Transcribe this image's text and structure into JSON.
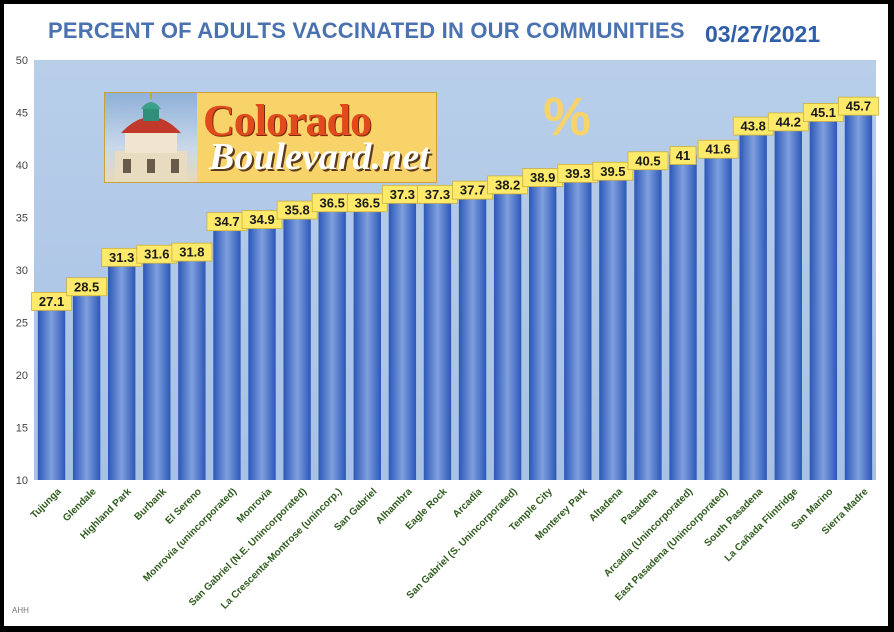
{
  "header": {
    "title": "PERCENT OF ADULTS VACCINATED IN OUR COMMUNITIES",
    "date": "03/27/2021"
  },
  "logo": {
    "word1": "Colorado",
    "word2": "Boulevard.net"
  },
  "percent_symbol": "%",
  "credit": "AHH",
  "colors": {
    "background_top": "#b8cfea",
    "background_bottom": "#a8c2e4",
    "bar_light": "#7fa0de",
    "bar_dark": "#2c57b8",
    "label_fill": "#fde96a",
    "label_text": "#1a1a1a",
    "category_text": "#2e5b1c",
    "title": "#4a72b0"
  },
  "chart_data": {
    "type": "bar",
    "title": "PERCENT OF ADULTS VACCINATED IN OUR COMMUNITIES",
    "xlabel": "",
    "ylabel": "",
    "ylim": [
      10,
      50
    ],
    "yticks": [
      10,
      15,
      20,
      25,
      30,
      35,
      40,
      45,
      50
    ],
    "grid": false,
    "legend": "none",
    "categories": [
      "Tujunga",
      "Glendale",
      "Highland Park",
      "Burbank",
      "El Sereno",
      "Monrovia (unincorporated)",
      "Monrovia",
      "San Gabriel (N.E. Unincorporated)",
      "La Crescenta-Montrose (unincorp.)",
      "San Gabriel",
      "Alhambra",
      "Eagle Rock",
      "Arcadia",
      "San Gabriel (S. Unincorporated)",
      "Temple City",
      "Monterey Park",
      "Altadena",
      "Pasadena",
      "Arcadia (Unincorporated)",
      "East Pasadena (Unincorporated)",
      "South Pasadena",
      "La Cañada Flintridge",
      "San Marino",
      "Sierra Madre"
    ],
    "values": [
      27.1,
      28.5,
      31.3,
      31.6,
      31.8,
      34.7,
      34.9,
      35.8,
      36.5,
      36.5,
      37.3,
      37.3,
      37.7,
      38.2,
      38.9,
      39.3,
      39.5,
      40.5,
      41,
      41.6,
      43.8,
      44.2,
      45.1,
      45.7
    ]
  }
}
